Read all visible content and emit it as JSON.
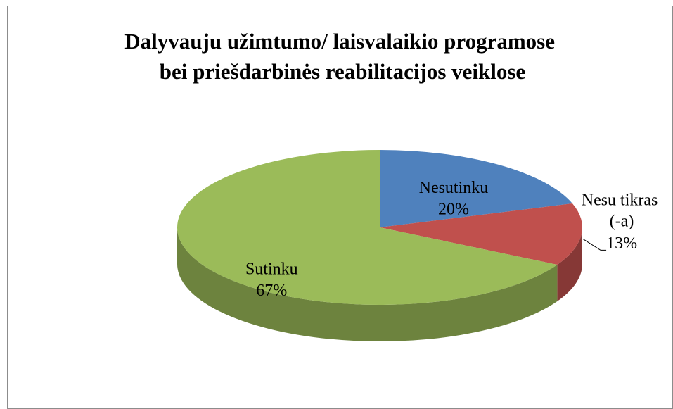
{
  "chart_data": {
    "type": "pie",
    "title": "Dalyvauju užimtumo/ laisvalaikio programose bei priešdarbinės reabilitacijos veiklose",
    "categories": [
      "Nesutinku",
      "Nesu tikras (-a)",
      "Sutinku"
    ],
    "values": [
      20,
      13,
      67
    ],
    "value_labels": [
      "20%",
      "13%",
      "67%"
    ],
    "colors": [
      "#4f81bd",
      "#c0504d",
      "#9bbb59"
    ],
    "three_d": true
  }
}
